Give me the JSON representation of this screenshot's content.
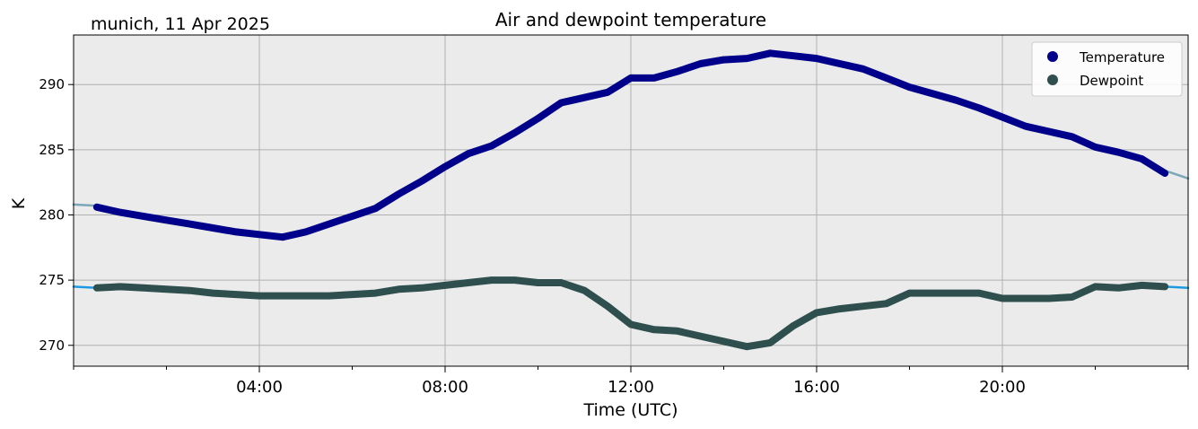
{
  "chart_data": {
    "type": "line",
    "title": "Air and dewpoint temperature",
    "subtitle": "munich, 11 Apr 2025",
    "xlabel": "Time (UTC)",
    "ylabel": "K",
    "xlim": [
      0,
      24
    ],
    "ylim": [
      268.4,
      293.8
    ],
    "x_ticks": [
      {
        "value": 4,
        "label": "04:00"
      },
      {
        "value": 8,
        "label": "08:00"
      },
      {
        "value": 12,
        "label": "12:00"
      },
      {
        "value": 16,
        "label": "16:00"
      },
      {
        "value": 20,
        "label": "20:00"
      }
    ],
    "y_ticks": [
      270,
      275,
      280,
      285,
      290
    ],
    "grid": true,
    "legend_position": "top-right",
    "colors": {
      "temperature_raw": "#7ba7b6",
      "temperature": "#00008b",
      "dewpoint_raw": "#1e9ae0",
      "dewpoint": "#2f4f4f",
      "plot_bg": "#ebebeb",
      "grid": "#b0b0b0"
    },
    "x": [
      0,
      0.5,
      1,
      1.5,
      2,
      2.5,
      3,
      3.5,
      4,
      4.5,
      5,
      5.5,
      6,
      6.5,
      7,
      7.5,
      8,
      8.5,
      9,
      9.5,
      10,
      10.5,
      11,
      11.5,
      12,
      12.5,
      13,
      13.5,
      14,
      14.5,
      15,
      15.5,
      16,
      16.5,
      17,
      17.5,
      18,
      18.5,
      19,
      19.5,
      20,
      20.5,
      21,
      21.5,
      22,
      22.5,
      23,
      23.5,
      24
    ],
    "series": [
      {
        "name": "Temperature",
        "style": "raw",
        "color": "#7ba7b6",
        "values": [
          280.8,
          280.7,
          280.3,
          279.9,
          279.6,
          279.3,
          279.0,
          278.7,
          278.5,
          278.3,
          278.7,
          279.3,
          279.9,
          280.5,
          281.7,
          282.7,
          283.8,
          284.8,
          285.4,
          286.4,
          287.5,
          288.8,
          289.2,
          289.6,
          290.7,
          290.6,
          291.1,
          291.8,
          292.1,
          292.1,
          292.4,
          292.2,
          292.0,
          291.6,
          291.2,
          290.5,
          289.8,
          289.3,
          288.8,
          288.2,
          287.5,
          286.8,
          286.4,
          286.0,
          285.2,
          284.8,
          284.3,
          283.4,
          282.8
        ]
      },
      {
        "name": "Temperature",
        "style": "smoothed",
        "color": "#00008b",
        "values": [
          280.8,
          280.6,
          280.2,
          279.9,
          279.6,
          279.3,
          279.0,
          278.7,
          278.5,
          278.3,
          278.7,
          279.3,
          279.9,
          280.5,
          281.6,
          282.6,
          283.7,
          284.7,
          285.3,
          286.3,
          287.4,
          288.6,
          289.0,
          289.4,
          290.5,
          290.5,
          291.0,
          291.6,
          291.9,
          292.0,
          292.4,
          292.2,
          292.0,
          291.6,
          291.2,
          290.5,
          289.8,
          289.3,
          288.8,
          288.2,
          287.5,
          286.8,
          286.4,
          286.0,
          285.2,
          284.8,
          284.3,
          283.2,
          282.9
        ]
      },
      {
        "name": "Dewpoint",
        "style": "raw",
        "color": "#1e9ae0",
        "values": [
          274.5,
          274.4,
          274.5,
          274.4,
          274.3,
          274.2,
          274.0,
          273.9,
          273.8,
          273.8,
          273.8,
          273.8,
          273.9,
          274.0,
          274.3,
          274.4,
          274.6,
          274.8,
          275.1,
          275.1,
          274.8,
          275.0,
          274.2,
          273.0,
          271.6,
          271.3,
          271.2,
          270.8,
          270.4,
          270.0,
          270.2,
          271.5,
          272.5,
          272.8,
          273.0,
          273.2,
          274.0,
          274.0,
          274.0,
          274.0,
          273.6,
          273.6,
          273.6,
          273.7,
          274.5,
          274.4,
          274.6,
          274.5,
          274.4
        ]
      },
      {
        "name": "Dewpoint",
        "style": "smoothed",
        "color": "#2f4f4f",
        "values": [
          274.5,
          274.4,
          274.5,
          274.4,
          274.3,
          274.2,
          274.0,
          273.9,
          273.8,
          273.8,
          273.8,
          273.8,
          273.9,
          274.0,
          274.3,
          274.4,
          274.6,
          274.8,
          275.0,
          275.0,
          274.8,
          274.8,
          274.2,
          273.0,
          271.6,
          271.2,
          271.1,
          270.7,
          270.3,
          269.9,
          270.2,
          271.5,
          272.5,
          272.8,
          273.0,
          273.2,
          274.0,
          274.0,
          274.0,
          274.0,
          273.6,
          273.6,
          273.6,
          273.7,
          274.5,
          274.4,
          274.6,
          274.5,
          274.4
        ]
      }
    ],
    "legend": [
      {
        "label": "Temperature",
        "color": "#00008b"
      },
      {
        "label": "Dewpoint",
        "color": "#2f4f4f"
      }
    ]
  }
}
